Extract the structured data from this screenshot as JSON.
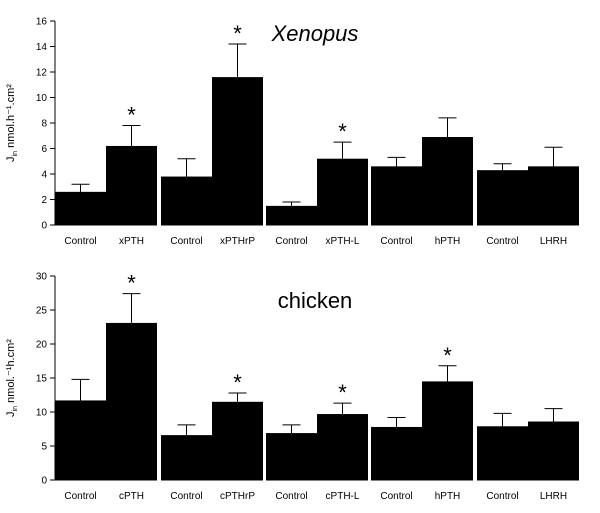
{
  "chart_data": [
    {
      "type": "bar",
      "title": "Xenopus",
      "title_style": "italic",
      "ylabel_main": "J",
      "ylabel_sub": "in",
      "ylabel_rest": " nmol.h⁻¹.cm²",
      "ylim": [
        0,
        16
      ],
      "yticks": [
        0,
        2,
        4,
        6,
        8,
        10,
        12,
        14,
        16
      ],
      "groups": [
        {
          "bars": [
            {
              "label": "Control",
              "value": 2.6,
              "err": 0.6,
              "sig": false
            },
            {
              "label": "xPTH",
              "value": 6.2,
              "err": 1.6,
              "sig": true
            }
          ]
        },
        {
          "bars": [
            {
              "label": "Control",
              "value": 3.8,
              "err": 1.4,
              "sig": false
            },
            {
              "label": "xPTHrP",
              "value": 11.6,
              "err": 2.6,
              "sig": true
            }
          ]
        },
        {
          "bars": [
            {
              "label": "Control",
              "value": 1.5,
              "err": 0.3,
              "sig": false
            },
            {
              "label": "xPTH-L",
              "value": 5.2,
              "err": 1.3,
              "sig": true
            }
          ]
        },
        {
          "bars": [
            {
              "label": "Control",
              "value": 4.6,
              "err": 0.7,
              "sig": false
            },
            {
              "label": "hPTH",
              "value": 6.9,
              "err": 1.5,
              "sig": false
            }
          ]
        },
        {
          "bars": [
            {
              "label": "Control",
              "value": 4.3,
              "err": 0.5,
              "sig": false
            },
            {
              "label": "LHRH",
              "value": 4.6,
              "err": 1.5,
              "sig": false
            }
          ]
        }
      ]
    },
    {
      "type": "bar",
      "title": "chicken",
      "title_style": "normal",
      "ylabel_main": "J",
      "ylabel_sub": "in",
      "ylabel_rest": " nmol.⁻¹h.cm²",
      "ylim": [
        0,
        30
      ],
      "yticks": [
        0,
        5,
        10,
        15,
        20,
        25,
        30
      ],
      "groups": [
        {
          "bars": [
            {
              "label": "Control",
              "value": 11.7,
              "err": 3.1,
              "sig": false
            },
            {
              "label": "cPTH",
              "value": 23.1,
              "err": 4.3,
              "sig": true
            }
          ]
        },
        {
          "bars": [
            {
              "label": "Control",
              "value": 6.6,
              "err": 1.5,
              "sig": false
            },
            {
              "label": "cPTHrP",
              "value": 11.5,
              "err": 1.3,
              "sig": true
            }
          ]
        },
        {
          "bars": [
            {
              "label": "Control",
              "value": 6.9,
              "err": 1.2,
              "sig": false
            },
            {
              "label": "cPTH-L",
              "value": 9.7,
              "err": 1.6,
              "sig": true
            }
          ]
        },
        {
          "bars": [
            {
              "label": "Control",
              "value": 7.8,
              "err": 1.4,
              "sig": false
            },
            {
              "label": "hPTH",
              "value": 14.5,
              "err": 2.3,
              "sig": true
            }
          ]
        },
        {
          "bars": [
            {
              "label": "Control",
              "value": 7.9,
              "err": 1.9,
              "sig": false
            },
            {
              "label": "LHRH",
              "value": 8.6,
              "err": 1.9,
              "sig": false
            }
          ]
        }
      ]
    }
  ],
  "significance_marker": "*",
  "colors": {
    "bar": "#000000",
    "axis": "#000000",
    "background": "#ffffff"
  }
}
